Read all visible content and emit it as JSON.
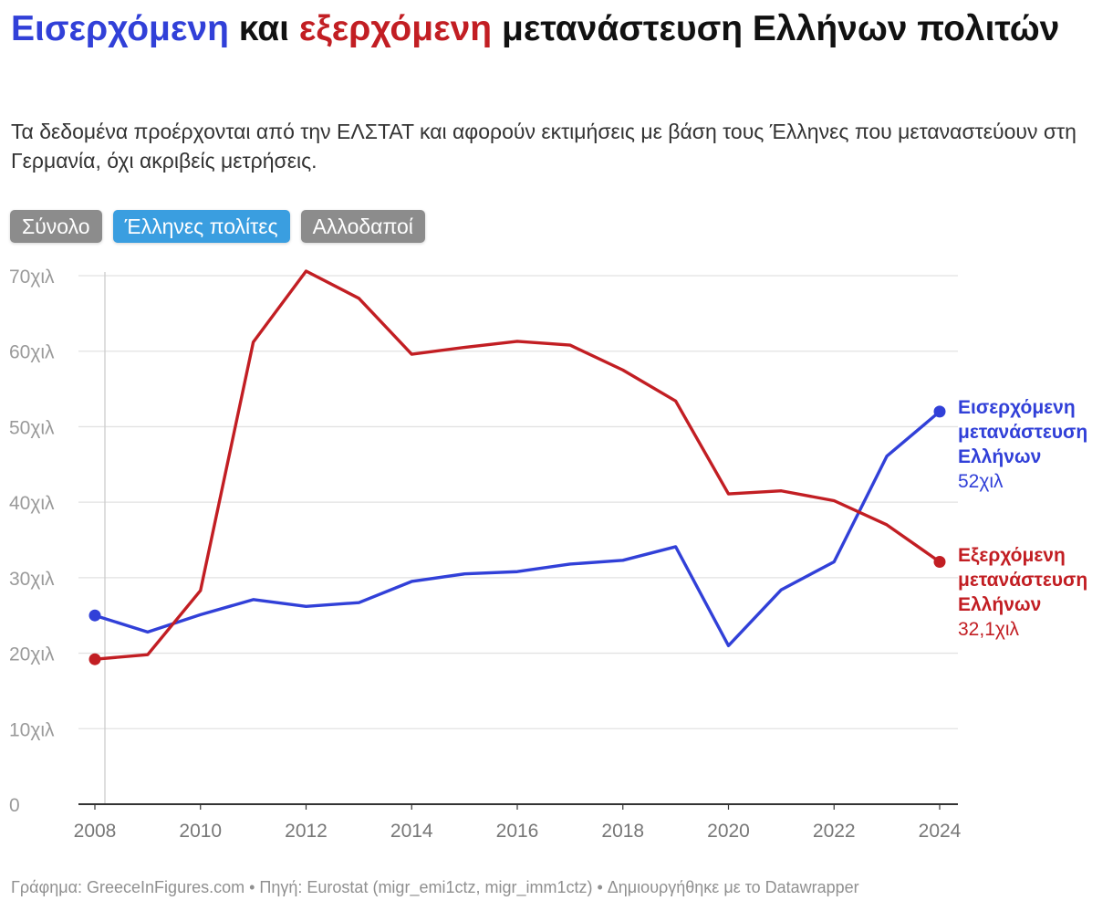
{
  "title": {
    "part1": "Εισερχόμενη",
    "part2": " και ",
    "part3": "εξερχόμενη",
    "part4": " μετανάστευση Ελλήνων πολιτών"
  },
  "subtitle": "Τα δεδομένα προέρχονται από την ΕΛΣΤΑΤ και αφορούν εκτιμήσεις με βάση τους Έλληνες που μεταναστεύουν στη Γερμανία, όχι ακριβείς μετρήσεις.",
  "buttons": [
    {
      "label": "Σύνολο",
      "active": false
    },
    {
      "label": "Έλληνες πολίτες",
      "active": true
    },
    {
      "label": "Αλλοδαποί",
      "active": false
    }
  ],
  "footer": "Γράφημα: GreeceInFigures.com • Πηγή: Eurostat (migr_emi1ctz, migr_imm1ctz) • Δημιουργήθηκε με το Datawrapper",
  "colors": {
    "immigration": "#3140d8",
    "emigration": "#c21e23",
    "active_button": "#3a9ee0",
    "inactive_button": "#8c8c8c"
  },
  "chart_data": {
    "type": "line",
    "x": [
      2008,
      2009,
      2010,
      2011,
      2012,
      2013,
      2014,
      2015,
      2016,
      2017,
      2018,
      2019,
      2020,
      2021,
      2022,
      2023,
      2024
    ],
    "xlim": [
      2008,
      2024
    ],
    "ylim": [
      0,
      70
    ],
    "x_ticks": [
      "2008",
      "2010",
      "2012",
      "2014",
      "2016",
      "2018",
      "2020",
      "2022",
      "2024"
    ],
    "y_ticks": [
      {
        "value": 0,
        "label": "0"
      },
      {
        "value": 10,
        "label": "10χιλ"
      },
      {
        "value": 20,
        "label": "20χιλ"
      },
      {
        "value": 30,
        "label": "30χιλ"
      },
      {
        "value": 40,
        "label": "40χιλ"
      },
      {
        "value": 50,
        "label": "50χιλ"
      },
      {
        "value": 60,
        "label": "60χιλ"
      },
      {
        "value": 70,
        "label": "70χιλ"
      }
    ],
    "grid": true,
    "legend": "direct labels at line ends (right)",
    "series": [
      {
        "key": "immigration",
        "name": "Εισερχόμενη μετανάστευση Ελλήνων",
        "name_lines": [
          "Εισερχόμενη",
          "μετανάστευση",
          "Ελλήνων"
        ],
        "last_value_label": "52χιλ",
        "color": "#3140d8",
        "values": [
          25.0,
          22.8,
          25.1,
          27.1,
          26.2,
          26.7,
          29.5,
          30.5,
          30.8,
          31.8,
          32.3,
          34.1,
          21.0,
          28.4,
          32.1,
          46.1,
          52.0
        ]
      },
      {
        "key": "emigration",
        "name": "Εξερχόμενη μετανάστευση Ελλήνων",
        "name_lines": [
          "Εξερχόμενη",
          "μετανάστευση",
          "Ελλήνων"
        ],
        "last_value_label": "32,1χιλ",
        "color": "#c21e23",
        "values": [
          19.2,
          19.8,
          28.3,
          61.2,
          70.6,
          67.0,
          59.6,
          60.5,
          61.3,
          60.8,
          57.5,
          53.4,
          41.1,
          41.5,
          40.2,
          37.0,
          32.1
        ]
      }
    ]
  }
}
